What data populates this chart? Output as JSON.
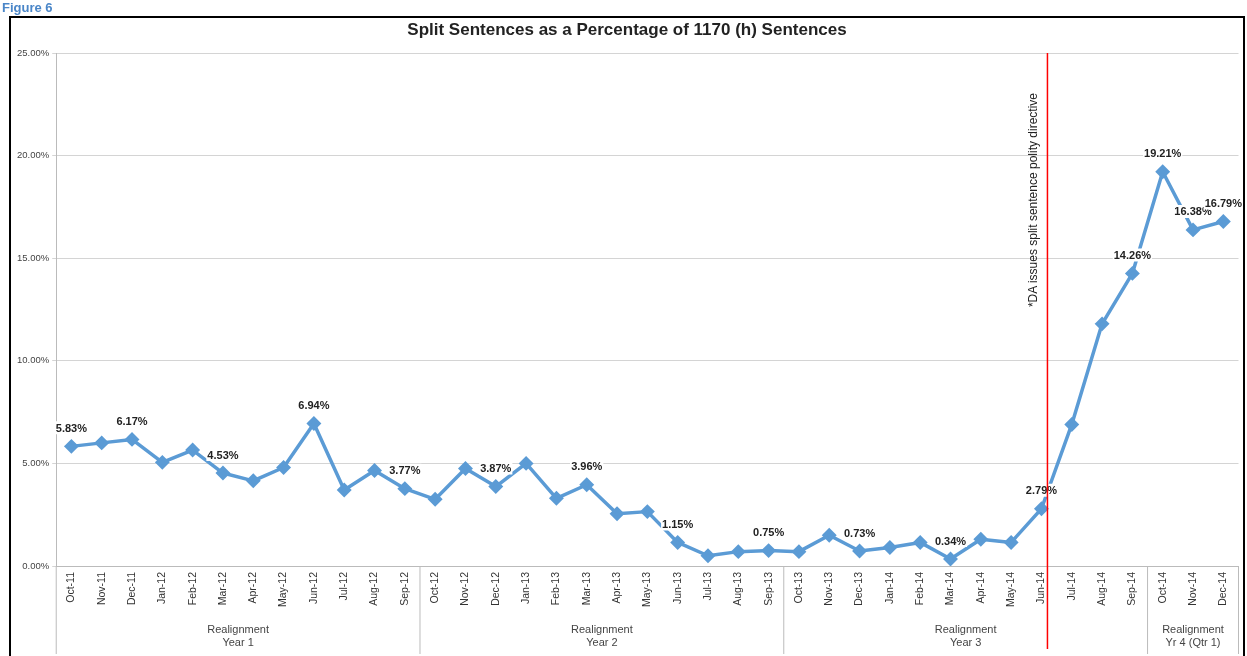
{
  "chart_data": {
    "type": "line",
    "title": "Split Sentences as a Percentage of 1170 (h) Sentences",
    "categories": [
      "Oct-11",
      "Nov-11",
      "Dec-11",
      "Jan-12",
      "Feb-12",
      "Mar-12",
      "Apr-12",
      "May-12",
      "Jun-12",
      "Jul-12",
      "Aug-12",
      "Sep-12",
      "Oct-12",
      "Nov-12",
      "Dec-12",
      "Jan-13",
      "Feb-13",
      "Mar-13",
      "Apr-13",
      "May-13",
      "Jun-13",
      "Jul-13",
      "Aug-13",
      "Sep-13",
      "Oct-13",
      "Nov-13",
      "Dec-13",
      "Jan-14",
      "Feb-14",
      "Mar-14",
      "Apr-14",
      "May-14",
      "Jun-14",
      "Jul-14",
      "Aug-14",
      "Sep-14",
      "Oct-14",
      "Nov-14",
      "Dec-14"
    ],
    "series": [
      {
        "color": "#5b9bd5",
        "values": [
          5.83,
          6.0,
          6.17,
          5.05,
          5.65,
          4.53,
          4.15,
          4.8,
          6.94,
          3.7,
          4.65,
          3.77,
          3.25,
          4.75,
          3.87,
          5.0,
          3.3,
          3.96,
          2.55,
          2.65,
          1.15,
          0.5,
          0.7,
          0.75,
          0.7,
          1.5,
          0.73,
          0.9,
          1.15,
          0.34,
          1.3,
          1.15,
          2.79,
          6.9,
          11.8,
          14.26,
          19.21,
          16.38,
          16.79
        ],
        "value_labels": [
          "5.83%",
          null,
          "6.17%",
          null,
          null,
          "4.53%",
          null,
          null,
          "6.94%",
          null,
          null,
          "3.77%",
          null,
          null,
          "3.87%",
          null,
          null,
          "3.96%",
          null,
          null,
          "1.15%",
          null,
          null,
          "0.75%",
          null,
          null,
          "0.73%",
          null,
          null,
          "0.34%",
          null,
          null,
          "2.79%",
          null,
          null,
          "14.26%",
          "19.21%",
          "16.38%",
          "16.79%"
        ]
      }
    ],
    "ylim": [
      0,
      25
    ],
    "yticks": [
      {
        "value": 0,
        "label": "0.00%"
      },
      {
        "value": 5,
        "label": "5.00%"
      },
      {
        "value": 10,
        "label": "10.00%"
      },
      {
        "value": 15,
        "label": "15.00%"
      },
      {
        "value": 20,
        "label": "20.00%"
      },
      {
        "value": 25,
        "label": "25.00%"
      }
    ],
    "grid": "y",
    "marker": "diamond",
    "line_style": "solid",
    "legend": false,
    "ref_lines": [
      {
        "axis": "x",
        "value": "Jun-14",
        "label": "*DA issues split sentence polity directive",
        "color": "#ff0000"
      }
    ],
    "annotations": [
      "Figure 6",
      "Realignment\nYear 1",
      "Realignment\nYear 2",
      "Realignment\nYear 3",
      "Realignment\nYr 4 (Qtr 1)"
    ]
  }
}
